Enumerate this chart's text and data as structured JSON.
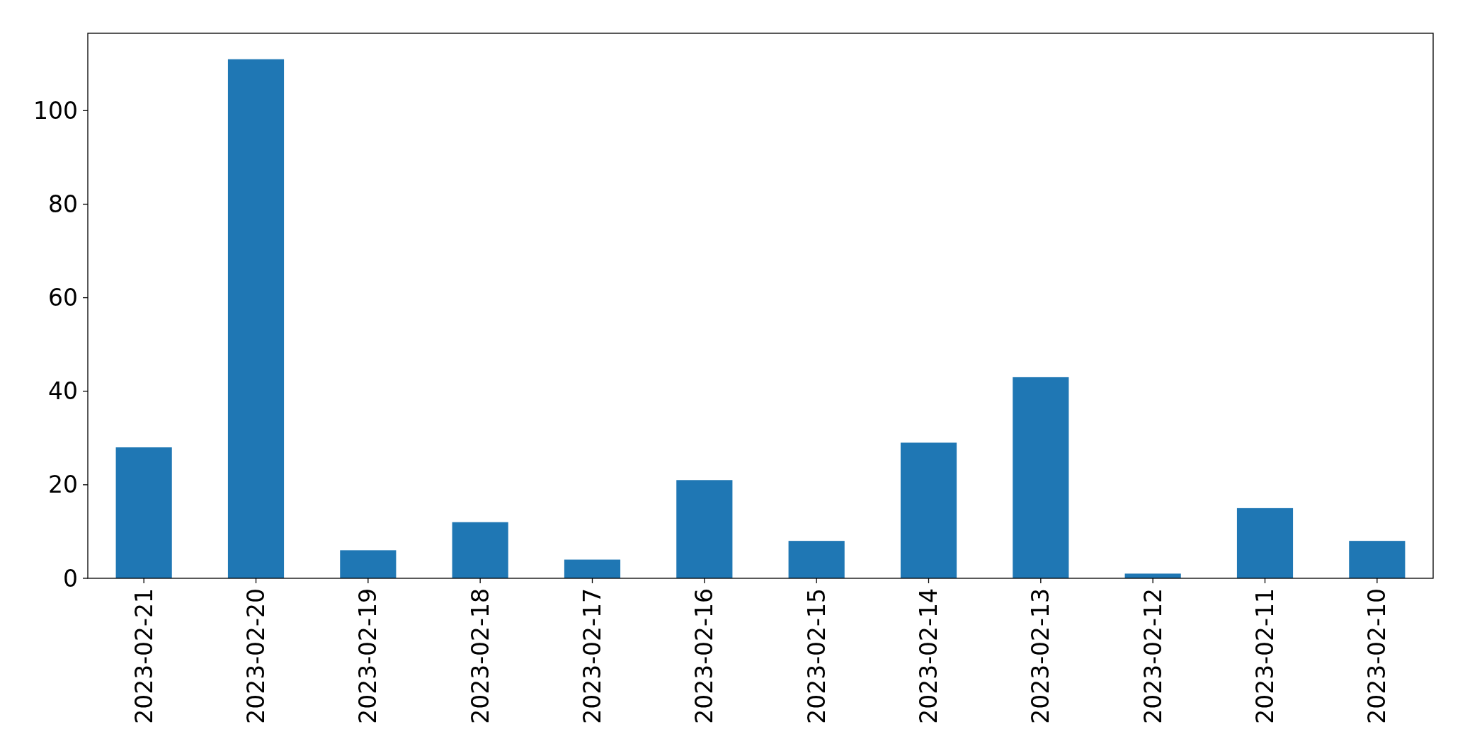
{
  "chart_data": {
    "type": "bar",
    "categories": [
      "2023-02-21",
      "2023-02-20",
      "2023-02-19",
      "2023-02-18",
      "2023-02-17",
      "2023-02-16",
      "2023-02-15",
      "2023-02-14",
      "2023-02-13",
      "2023-02-12",
      "2023-02-11",
      "2023-02-10"
    ],
    "values": [
      28,
      111,
      6,
      12,
      4,
      21,
      8,
      29,
      43,
      1,
      15,
      8
    ],
    "color": "#1f77b4",
    "ylim": [
      0,
      116.55
    ],
    "yticks": [
      0,
      20,
      40,
      60,
      80,
      100
    ],
    "grid": false
  }
}
